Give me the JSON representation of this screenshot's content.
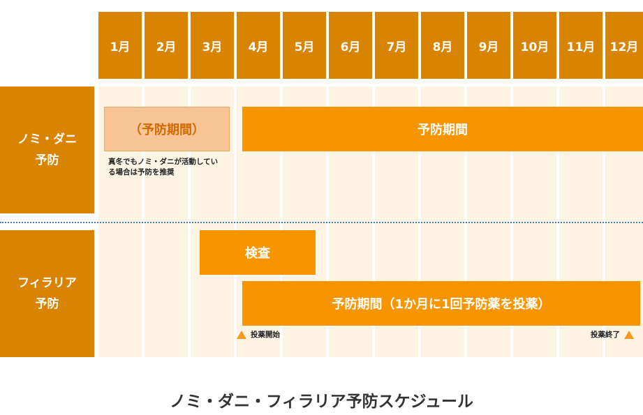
{
  "months": [
    "1月",
    "2月",
    "3月",
    "4月",
    "5月",
    "6月",
    "7月",
    "8月",
    "9月",
    "10月",
    "11月",
    "12月"
  ],
  "rows": {
    "flea_tick": {
      "label_line1": "ノミ・ダニ",
      "label_line2": "予防"
    },
    "filaria": {
      "label_line1": "フィラリア",
      "label_line2": "予防"
    }
  },
  "bars": {
    "flea_optional": "（予防期間）",
    "flea_main": "予防期間",
    "filaria_exam": "検査",
    "filaria_main": "予防期間（1か月に1回予防薬を投薬）"
  },
  "notes": {
    "winter_line1": "真冬でもノミ・ダニが活動してい",
    "winter_line2": "る場合は予防を推奨"
  },
  "markers": {
    "start": "投薬開始",
    "end": "投薬終了"
  },
  "title": "ノミ・ダニ・フィラリア予防スケジュール",
  "colors": {
    "header": "#d98400",
    "bar": "#f79500",
    "bar_light": "#f8c496",
    "column_bg": "#fdf4e4",
    "divider": "#3a7bc2",
    "marker": "#f29b1c"
  }
}
